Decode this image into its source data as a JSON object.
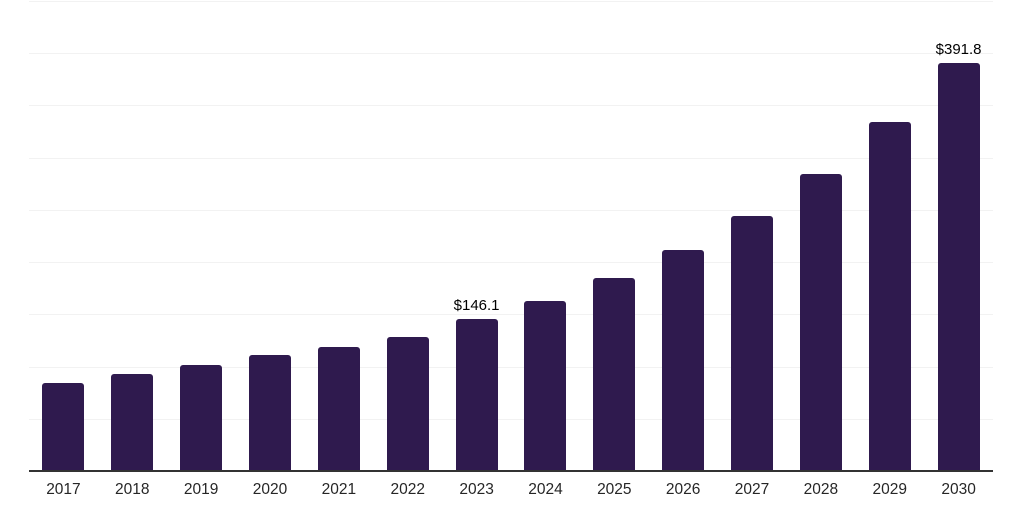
{
  "chart_data": {
    "type": "bar",
    "title": "",
    "xlabel": "",
    "ylabel": "",
    "categories": [
      "2017",
      "2018",
      "2019",
      "2020",
      "2021",
      "2022",
      "2023",
      "2024",
      "2025",
      "2026",
      "2027",
      "2028",
      "2029",
      "2030"
    ],
    "values": [
      85.4,
      94.0,
      102.7,
      112.3,
      119.9,
      129.5,
      146.1,
      164.1,
      186.1,
      212.1,
      244.7,
      285.0,
      334.9,
      391.8
    ],
    "value_labels": {
      "2023": "$146.1",
      "2030": "$391.8"
    },
    "ylim": [
      0,
      450
    ],
    "grid_interval": 50,
    "grid": "horizontal-only",
    "legend": "none",
    "colors": {
      "bar": "#2f1a4e",
      "axis_line": "#333333",
      "gridline": "#f2f2f2",
      "value_label": "#000000",
      "tick_label": "#262626"
    }
  }
}
